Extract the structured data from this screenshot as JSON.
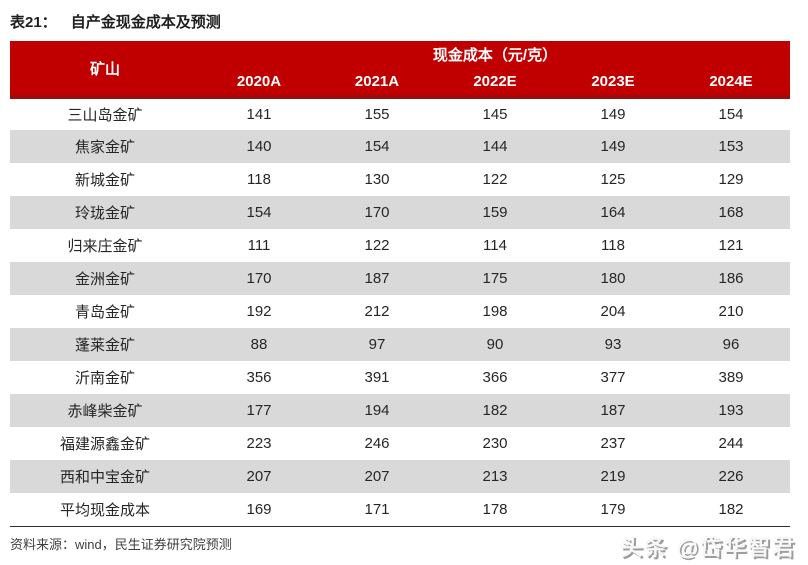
{
  "page": {
    "title_label": "表21：",
    "title": "自产金现金成本及预测",
    "source_note": "资料来源：wind，民生证券研究院预测",
    "watermark": "头条 @岱华智君"
  },
  "colors": {
    "header_red": "#C00000",
    "header_bottom_border": "#9B0C0C",
    "row_alt_gray": "#D9D9D9",
    "body_text": "#262626"
  },
  "chart_data": {
    "type": "table",
    "title": "表21：自产金现金成本及预测",
    "group_header": "现金成本（元/克）",
    "mine_column_header": "矿山",
    "year_columns": [
      "2020A",
      "2021A",
      "2022E",
      "2023E",
      "2024E"
    ],
    "rows": [
      {
        "mine": "三山岛金矿",
        "values": [
          141,
          155,
          145,
          149,
          154
        ]
      },
      {
        "mine": "焦家金矿",
        "values": [
          140,
          154,
          144,
          149,
          153
        ]
      },
      {
        "mine": "新城金矿",
        "values": [
          118,
          130,
          122,
          125,
          129
        ]
      },
      {
        "mine": "玲珑金矿",
        "values": [
          154,
          170,
          159,
          164,
          168
        ]
      },
      {
        "mine": "归来庄金矿",
        "values": [
          111,
          122,
          114,
          118,
          121
        ]
      },
      {
        "mine": "金洲金矿",
        "values": [
          170,
          187,
          175,
          180,
          186
        ]
      },
      {
        "mine": "青岛金矿",
        "values": [
          192,
          212,
          198,
          204,
          210
        ]
      },
      {
        "mine": "蓬莱金矿",
        "values": [
          88,
          97,
          90,
          93,
          96
        ]
      },
      {
        "mine": "沂南金矿",
        "values": [
          356,
          391,
          366,
          377,
          389
        ]
      },
      {
        "mine": "赤峰柴金矿",
        "values": [
          177,
          194,
          182,
          187,
          193
        ]
      },
      {
        "mine": "福建源鑫金矿",
        "values": [
          223,
          246,
          230,
          237,
          244
        ]
      },
      {
        "mine": "西和中宝金矿",
        "values": [
          207,
          207,
          213,
          219,
          226
        ]
      },
      {
        "mine": "平均现金成本",
        "values": [
          169,
          171,
          178,
          179,
          182
        ]
      }
    ]
  }
}
